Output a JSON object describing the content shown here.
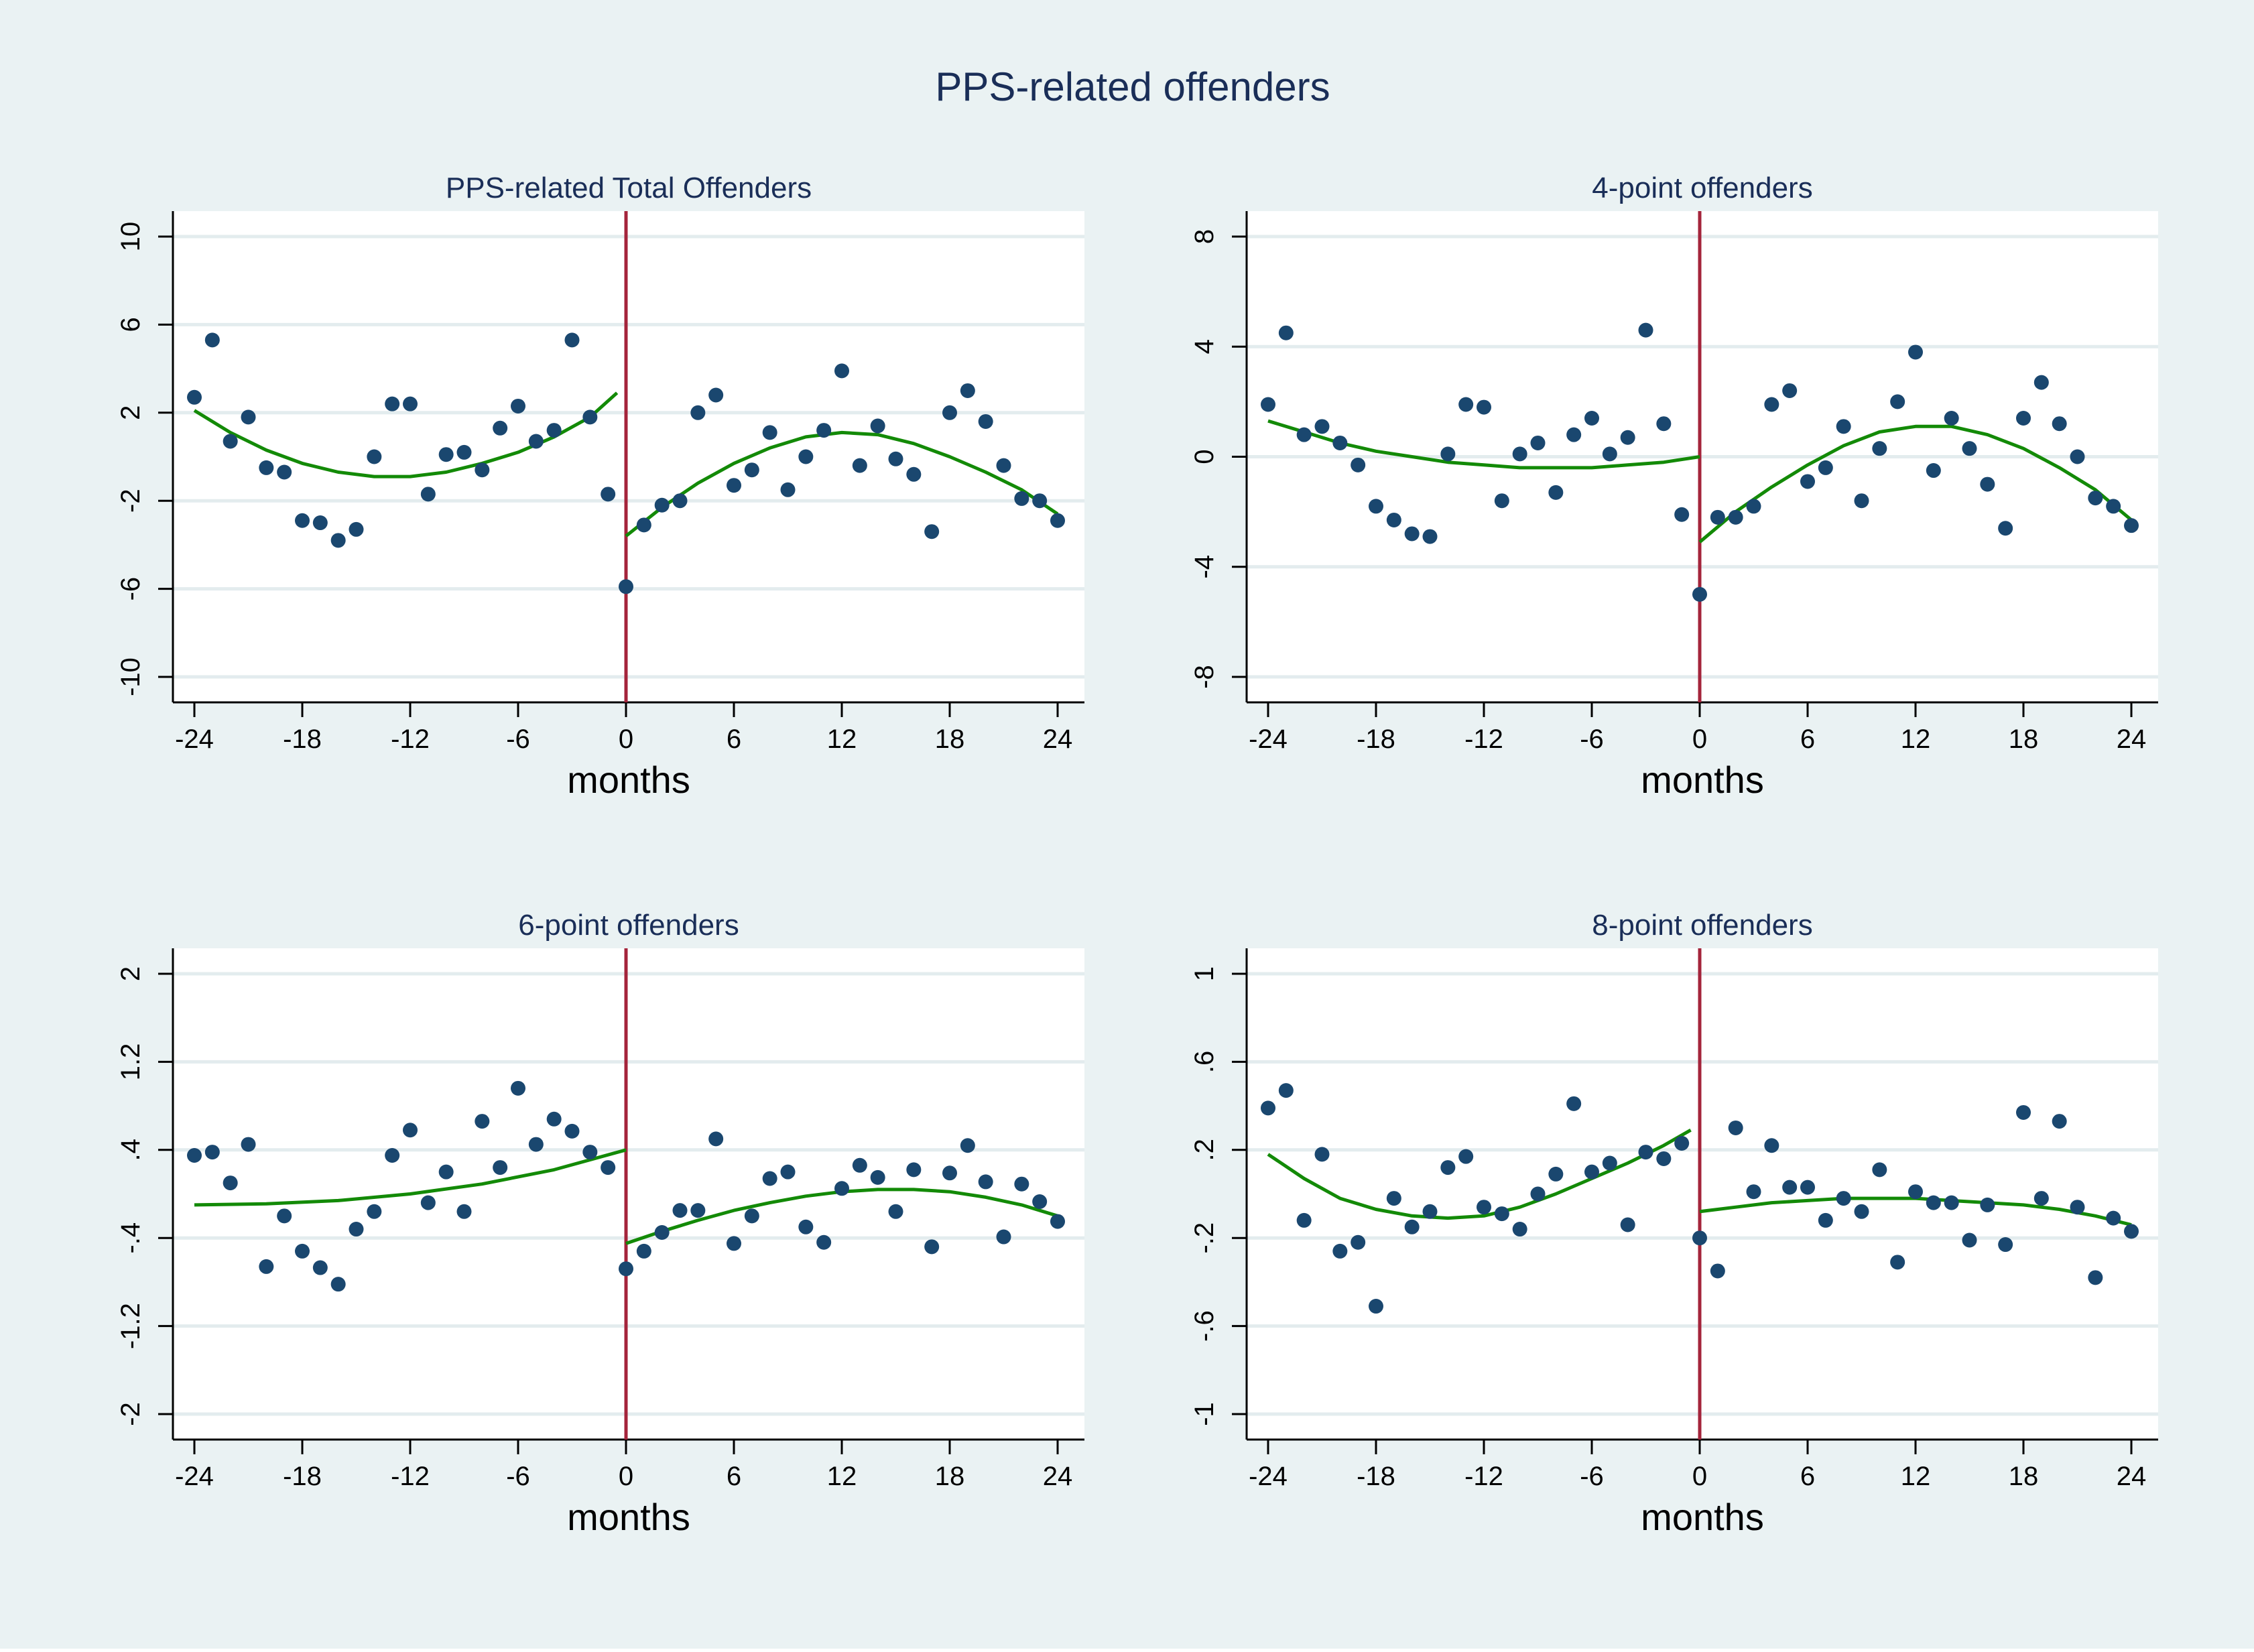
{
  "title": "PPS-related offenders",
  "colors": {
    "outer_background": "#eaf2f3",
    "plot_background": "#ffffff",
    "gridline": "#e3ecee",
    "marker": "#1a476f",
    "fit_line": "#138a07",
    "cutoff_line": "#a4243b",
    "title_text": "#1a2e58",
    "axis_text": "#000000"
  },
  "chart_data": [
    {
      "type": "scatter",
      "title": "PPS-related Total Offenders",
      "xlabel": "months",
      "ylabel": "",
      "xlim": [
        -24,
        24
      ],
      "ylim": [
        -10,
        10
      ],
      "xticks": [
        -24,
        -18,
        -12,
        -6,
        0,
        6,
        12,
        18,
        24
      ],
      "xtick_labels": [
        "-24",
        "-18",
        "-12",
        "-6",
        "0",
        "6",
        "12",
        "18",
        "24"
      ],
      "yticks": [
        -10,
        -6,
        -2,
        2,
        6,
        10
      ],
      "ytick_labels": [
        "-10",
        "-6",
        "-2",
        "2",
        "6",
        "10"
      ],
      "grid": true,
      "cutoff_x": 0,
      "points": {
        "x": [
          -24,
          -23,
          -22,
          -21,
          -20,
          -19,
          -18,
          -17,
          -16,
          -15,
          -14,
          -13,
          -12,
          -11,
          -10,
          -9,
          -8,
          -7,
          -6,
          -5,
          -4,
          -3,
          -2,
          -1,
          0,
          1,
          2,
          3,
          4,
          5,
          6,
          7,
          8,
          9,
          10,
          11,
          12,
          13,
          14,
          15,
          16,
          17,
          18,
          19,
          20,
          21,
          22,
          23,
          24
        ],
        "y": [
          2.7,
          5.3,
          0.7,
          1.8,
          -0.5,
          -0.7,
          -2.9,
          -3.0,
          -3.8,
          -3.3,
          0.0,
          2.4,
          2.4,
          -1.7,
          0.1,
          0.2,
          -0.6,
          1.3,
          2.3,
          0.7,
          1.2,
          5.3,
          1.8,
          -1.7,
          -5.9,
          -3.1,
          -2.2,
          -2.0,
          2.0,
          2.8,
          -1.3,
          -0.6,
          1.1,
          -1.5,
          0.0,
          1.2,
          3.9,
          -0.4,
          1.4,
          -0.1,
          -0.8,
          -3.4,
          2.0,
          3.0,
          1.6,
          -0.4,
          -1.9,
          -2.0,
          -2.9
        ]
      },
      "fit_left": {
        "x": [
          -24,
          -22,
          -20,
          -18,
          -16,
          -14,
          -12,
          -10,
          -8,
          -6,
          -4,
          -2,
          -0.5
        ],
        "y": [
          2.1,
          1.1,
          0.3,
          -0.3,
          -0.7,
          -0.9,
          -0.9,
          -0.7,
          -0.3,
          0.2,
          0.9,
          1.8,
          2.9
        ]
      },
      "fit_right": {
        "x": [
          0,
          2,
          4,
          6,
          8,
          10,
          12,
          14,
          16,
          18,
          20,
          22,
          24
        ],
        "y": [
          -3.6,
          -2.3,
          -1.2,
          -0.3,
          0.4,
          0.9,
          1.1,
          1.0,
          0.6,
          0.0,
          -0.7,
          -1.5,
          -2.6
        ]
      }
    },
    {
      "type": "scatter",
      "title": "4-point offenders",
      "xlabel": "months",
      "ylabel": "",
      "xlim": [
        -24,
        24
      ],
      "ylim": [
        -8,
        8
      ],
      "xticks": [
        -24,
        -18,
        -12,
        -6,
        0,
        6,
        12,
        18,
        24
      ],
      "xtick_labels": [
        "-24",
        "-18",
        "-12",
        "-6",
        "0",
        "6",
        "12",
        "18",
        "24"
      ],
      "yticks": [
        -8,
        -4,
        0,
        4,
        8
      ],
      "ytick_labels": [
        "-8",
        "-4",
        "0",
        "4",
        "8"
      ],
      "grid": true,
      "cutoff_x": 0,
      "points": {
        "x": [
          -24,
          -23,
          -22,
          -21,
          -20,
          -19,
          -18,
          -17,
          -16,
          -15,
          -14,
          -13,
          -12,
          -11,
          -10,
          -9,
          -8,
          -7,
          -6,
          -5,
          -4,
          -3,
          -2,
          -1,
          0,
          1,
          2,
          3,
          4,
          5,
          6,
          7,
          8,
          9,
          10,
          11,
          12,
          13,
          14,
          15,
          16,
          17,
          18,
          19,
          20,
          21,
          22,
          23,
          24
        ],
        "y": [
          1.9,
          4.5,
          0.8,
          1.1,
          0.5,
          -0.3,
          -1.8,
          -2.3,
          -2.8,
          -2.9,
          0.1,
          1.9,
          1.8,
          -1.6,
          0.1,
          0.5,
          -1.3,
          0.8,
          1.4,
          0.1,
          0.7,
          4.6,
          1.2,
          -2.1,
          -5.0,
          -2.2,
          -2.2,
          -1.8,
          1.9,
          2.4,
          -0.9,
          -0.4,
          1.1,
          -1.6,
          0.3,
          2.0,
          3.8,
          -0.5,
          1.4,
          0.3,
          -1.0,
          -2.6,
          1.4,
          2.7,
          1.2,
          0.0,
          -1.5,
          -1.8,
          -2.5
        ]
      },
      "fit_left": {
        "x": [
          -24,
          -22,
          -20,
          -18,
          -16,
          -14,
          -12,
          -10,
          -8,
          -6,
          -4,
          -2,
          0
        ],
        "y": [
          1.3,
          0.9,
          0.5,
          0.2,
          0.0,
          -0.2,
          -0.3,
          -0.4,
          -0.4,
          -0.4,
          -0.3,
          -0.2,
          0.0
        ]
      },
      "fit_right": {
        "x": [
          0,
          2,
          4,
          6,
          8,
          10,
          12,
          14,
          16,
          18,
          20,
          22,
          24
        ],
        "y": [
          -3.1,
          -2.0,
          -1.1,
          -0.3,
          0.4,
          0.9,
          1.1,
          1.1,
          0.8,
          0.3,
          -0.4,
          -1.2,
          -2.3
        ]
      }
    },
    {
      "type": "scatter",
      "title": "6-point offenders",
      "xlabel": "months",
      "ylabel": "",
      "xlim": [
        -24,
        24
      ],
      "ylim": [
        -2,
        2
      ],
      "xticks": [
        -24,
        -18,
        -12,
        -6,
        0,
        6,
        12,
        18,
        24
      ],
      "xtick_labels": [
        "-24",
        "-18",
        "-12",
        "-6",
        "0",
        "6",
        "12",
        "18",
        "24"
      ],
      "yticks": [
        -2,
        -1.2,
        -0.4,
        0.4,
        1.2,
        2
      ],
      "ytick_labels": [
        "-2",
        "-1.2",
        "-.4",
        ".4",
        "1.2",
        "2"
      ],
      "grid": true,
      "cutoff_x": 0,
      "points": {
        "x": [
          -24,
          -23,
          -22,
          -21,
          -20,
          -19,
          -18,
          -17,
          -16,
          -15,
          -14,
          -13,
          -12,
          -11,
          -10,
          -9,
          -8,
          -7,
          -6,
          -5,
          -4,
          -3,
          -2,
          -1,
          0,
          1,
          2,
          3,
          4,
          5,
          6,
          7,
          8,
          9,
          10,
          11,
          12,
          13,
          14,
          15,
          16,
          17,
          18,
          19,
          20,
          21,
          22,
          23,
          24
        ],
        "y": [
          0.35,
          0.38,
          0.1,
          0.45,
          -0.66,
          -0.2,
          -0.52,
          -0.67,
          -0.82,
          -0.32,
          -0.16,
          0.35,
          0.58,
          -0.08,
          0.2,
          -0.16,
          0.66,
          0.24,
          0.96,
          0.45,
          0.68,
          0.57,
          0.38,
          0.24,
          -0.68,
          -0.52,
          -0.35,
          -0.15,
          -0.15,
          0.5,
          -0.45,
          -0.2,
          0.14,
          0.2,
          -0.3,
          -0.44,
          0.05,
          0.26,
          0.15,
          -0.16,
          0.22,
          -0.48,
          0.19,
          0.44,
          0.11,
          -0.39,
          0.09,
          -0.07,
          -0.25
        ]
      },
      "fit_left": {
        "x": [
          -24,
          -20,
          -16,
          -12,
          -8,
          -4,
          0
        ],
        "y": [
          -0.1,
          -0.09,
          -0.06,
          0.0,
          0.09,
          0.22,
          0.4
        ]
      },
      "fit_right": {
        "x": [
          0,
          2,
          4,
          6,
          8,
          10,
          12,
          14,
          16,
          18,
          20,
          22,
          24
        ],
        "y": [
          -0.45,
          -0.34,
          -0.24,
          -0.15,
          -0.08,
          -0.02,
          0.02,
          0.04,
          0.04,
          0.02,
          -0.03,
          -0.1,
          -0.2
        ]
      }
    },
    {
      "type": "scatter",
      "title": "8-point offenders",
      "xlabel": "months",
      "ylabel": "",
      "xlim": [
        -24,
        24
      ],
      "ylim": [
        -1,
        1
      ],
      "xticks": [
        -24,
        -18,
        -12,
        -6,
        0,
        6,
        12,
        18,
        24
      ],
      "xtick_labels": [
        "-24",
        "-18",
        "-12",
        "-6",
        "0",
        "6",
        "12",
        "18",
        "24"
      ],
      "yticks": [
        -1,
        -0.6,
        -0.2,
        0.2,
        0.6,
        1
      ],
      "ytick_labels": [
        "-1",
        "-.6",
        "-.2",
        ".2",
        ".6",
        "1"
      ],
      "grid": true,
      "cutoff_x": 0,
      "points": {
        "x": [
          -24,
          -23,
          -22,
          -21,
          -20,
          -19,
          -18,
          -17,
          -16,
          -15,
          -14,
          -13,
          -12,
          -11,
          -10,
          -9,
          -8,
          -7,
          -6,
          -5,
          -4,
          -3,
          -2,
          -1,
          0,
          1,
          2,
          3,
          4,
          5,
          6,
          7,
          8,
          9,
          10,
          11,
          12,
          13,
          14,
          15,
          16,
          17,
          18,
          19,
          20,
          21,
          22,
          23,
          24
        ],
        "y": [
          0.39,
          0.47,
          -0.12,
          0.18,
          -0.26,
          -0.22,
          -0.51,
          -0.02,
          -0.15,
          -0.08,
          0.12,
          0.17,
          -0.06,
          -0.09,
          -0.16,
          0.0,
          0.09,
          0.41,
          0.1,
          0.14,
          -0.14,
          0.19,
          0.16,
          0.23,
          -0.2,
          -0.35,
          0.3,
          0.01,
          0.22,
          0.03,
          0.03,
          -0.12,
          -0.02,
          -0.08,
          0.11,
          -0.31,
          0.01,
          -0.04,
          -0.04,
          -0.21,
          -0.05,
          -0.23,
          0.37,
          -0.02,
          0.33,
          -0.06,
          -0.38,
          -0.11,
          -0.17
        ]
      },
      "fit_left": {
        "x": [
          -24,
          -22,
          -20,
          -18,
          -16,
          -14,
          -12,
          -10,
          -8,
          -6,
          -4,
          -2,
          -0.5
        ],
        "y": [
          0.18,
          0.07,
          -0.02,
          -0.07,
          -0.1,
          -0.11,
          -0.1,
          -0.06,
          0.0,
          0.07,
          0.14,
          0.22,
          0.29
        ]
      },
      "fit_right": {
        "x": [
          0,
          2,
          4,
          6,
          8,
          10,
          12,
          14,
          16,
          18,
          20,
          22,
          24
        ],
        "y": [
          -0.08,
          -0.06,
          -0.04,
          -0.03,
          -0.02,
          -0.02,
          -0.02,
          -0.03,
          -0.04,
          -0.05,
          -0.07,
          -0.1,
          -0.14
        ]
      }
    }
  ]
}
